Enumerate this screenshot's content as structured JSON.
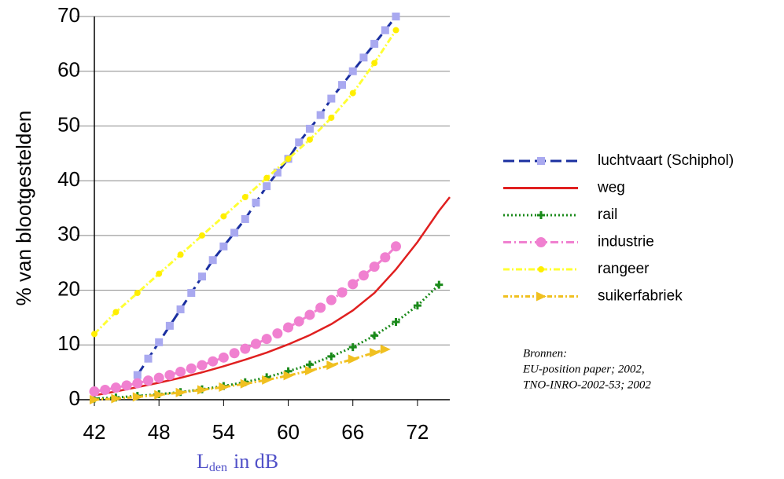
{
  "chart_data": {
    "type": "line",
    "y_label": "% van blootgestelden",
    "x_label": {
      "main": "L",
      "sub": "den",
      "suffix": "in dB"
    },
    "xlim": [
      42,
      75
    ],
    "xticks": [
      42,
      48,
      54,
      60,
      66,
      72
    ],
    "ylim": [
      0,
      70
    ],
    "yticks": [
      0,
      10,
      20,
      30,
      40,
      50,
      60,
      70
    ],
    "grid": true,
    "legend": "right",
    "series": [
      {
        "name": "luchtvaart (Schiphol)",
        "color": "#1a2fa0",
        "marker_color": "#a9a9f0",
        "marker": "square",
        "dash": "14 6",
        "x": [
          46,
          47,
          48,
          49,
          50,
          51,
          52,
          53,
          54,
          55,
          56,
          57,
          58,
          59,
          60,
          61,
          62,
          63,
          64,
          65,
          66,
          67,
          68,
          69,
          70
        ],
        "values": [
          4.5,
          7.5,
          10.5,
          13.5,
          16.5,
          19.5,
          22.5,
          25.5,
          28,
          30.5,
          33,
          36,
          39,
          41.5,
          44,
          47,
          49.5,
          52,
          55,
          57.5,
          60,
          62.5,
          65,
          67.5,
          70
        ]
      },
      {
        "name": "weg",
        "color": "#e02020",
        "marker_color": "#e02020",
        "marker": "none",
        "dash": "",
        "x": [
          42,
          44,
          46,
          48,
          50,
          52,
          54,
          56,
          58,
          60,
          62,
          64,
          66,
          68,
          70,
          72,
          74,
          75
        ],
        "values": [
          0.8,
          1.5,
          2.3,
          3.1,
          4.0,
          5.0,
          6.1,
          7.3,
          8.6,
          10.1,
          11.8,
          13.8,
          16.3,
          19.5,
          23.8,
          28.8,
          34.5,
          37
        ]
      },
      {
        "name": "rail",
        "color": "#1a8a1a",
        "marker_color": "#1a8a1a",
        "marker": "plus",
        "dash": "2 3",
        "x": [
          42,
          44,
          46,
          48,
          50,
          52,
          54,
          56,
          58,
          60,
          62,
          64,
          66,
          68,
          70,
          72,
          74
        ],
        "values": [
          0.2,
          0.4,
          0.7,
          1.0,
          1.4,
          1.9,
          2.5,
          3.2,
          4.1,
          5.2,
          6.4,
          7.9,
          9.6,
          11.7,
          14.2,
          17.2,
          21
        ]
      },
      {
        "name": "industrie",
        "color": "#f080d0",
        "marker_color": "#f080d0",
        "marker": "circle",
        "dash": "10 4 2 4",
        "x": [
          42,
          43,
          44,
          45,
          46,
          47,
          48,
          49,
          50,
          51,
          52,
          53,
          54,
          55,
          56,
          57,
          58,
          59,
          60,
          61,
          62,
          63,
          64,
          65,
          66,
          67,
          68,
          69,
          70
        ],
        "values": [
          1.5,
          1.8,
          2.2,
          2.6,
          3.0,
          3.5,
          4.0,
          4.5,
          5.1,
          5.7,
          6.3,
          7.0,
          7.7,
          8.5,
          9.3,
          10.2,
          11.1,
          12.1,
          13.2,
          14.3,
          15.5,
          16.8,
          18.2,
          19.6,
          21.1,
          22.7,
          24.3,
          26.0,
          28
        ]
      },
      {
        "name": "rangeer",
        "color": "#ffff33",
        "marker_color": "#ffee00",
        "marker": "dot",
        "dash": "8 3 2 3",
        "x": [
          42,
          44,
          46,
          48,
          50,
          52,
          54,
          56,
          58,
          60,
          62,
          64,
          66,
          68,
          70
        ],
        "values": [
          12,
          16,
          19.5,
          23,
          26.5,
          30,
          33.5,
          37,
          40.5,
          44,
          47.5,
          51.5,
          56,
          61.5,
          67.5
        ]
      },
      {
        "name": "suikerfabriek",
        "color": "#f0c020",
        "marker_color": "#f0c020",
        "marker": "triangle",
        "dash": "6 3 2 3",
        "x": [
          42,
          44,
          46,
          48,
          50,
          52,
          54,
          56,
          58,
          60,
          62,
          64,
          66,
          68,
          69
        ],
        "values": [
          0,
          0.2,
          0.5,
          0.9,
          1.3,
          1.8,
          2.3,
          2.9,
          3.6,
          4.4,
          5.3,
          6.3,
          7.4,
          8.6,
          9.2
        ]
      }
    ],
    "source": {
      "heading": "Bronnen:",
      "lines": [
        "EU-position paper; 2002,",
        "TNO-INRO-2002-53; 2002"
      ]
    }
  }
}
